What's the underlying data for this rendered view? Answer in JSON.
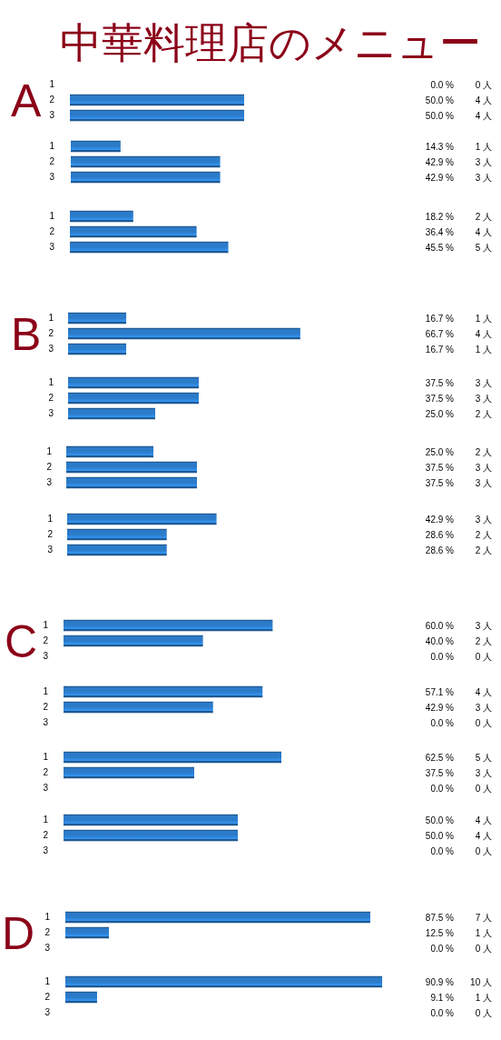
{
  "chart_data": [
    {
      "type": "bar",
      "orientation": "horizontal",
      "title": "中華料理店のメニュー",
      "ylabel": "A",
      "categories": [
        "1",
        "2",
        "3"
      ],
      "values": [
        0,
        50.0,
        50.0
      ],
      "color": "#2b7bc9",
      "tick_labels": "y",
      "value_labels": [
        "0.0 %",
        "50.0 %",
        "50.0 %"
      ],
      "annotations": [
        "0 人",
        "4 人",
        "4 人"
      ]
    },
    {
      "type": "bar",
      "orientation": "horizontal",
      "categories": [
        "1",
        "2",
        "3"
      ],
      "values": [
        14.3,
        42.9,
        42.9
      ],
      "color": "#2b7bc9",
      "tick_labels": "y",
      "value_labels": [
        "14.3 %",
        "42.9 %",
        "42.9 %"
      ],
      "annotations": [
        "1 人",
        "3 人",
        "3 人"
      ]
    },
    {
      "type": "bar",
      "orientation": "horizontal",
      "categories": [
        "1",
        "2",
        "3"
      ],
      "values": [
        18.2,
        36.4,
        45.5
      ],
      "color": "#2b7bc9",
      "tick_labels": "y",
      "value_labels": [
        "18.2 %",
        "36.4 %",
        "45.5 %"
      ],
      "annotations": [
        "2 人",
        "4 人",
        "5 人"
      ]
    },
    {
      "type": "bar",
      "orientation": "horizontal",
      "ylabel": "B",
      "categories": [
        "1",
        "2",
        "3"
      ],
      "values": [
        16.7,
        66.7,
        16.7
      ],
      "color": "#2b7bc9",
      "tick_labels": "y",
      "value_labels": [
        "16.7 %",
        "66.7 %",
        "16.7 %"
      ],
      "annotations": [
        "1 人",
        "4 人",
        "1 人"
      ]
    },
    {
      "type": "bar",
      "orientation": "horizontal",
      "categories": [
        "1",
        "2",
        "3"
      ],
      "values": [
        37.5,
        37.5,
        25.0
      ],
      "color": "#2b7bc9",
      "tick_labels": "y",
      "value_labels": [
        "37.5 %",
        "37.5 %",
        "25.0 %"
      ],
      "annotations": [
        "3 人",
        "3 人",
        "2 人"
      ]
    },
    {
      "type": "bar",
      "orientation": "horizontal",
      "categories": [
        "1",
        "2",
        "3"
      ],
      "values": [
        25.0,
        37.5,
        37.5
      ],
      "color": "#2b7bc9",
      "tick_labels": "y",
      "value_labels": [
        "25.0 %",
        "37.5 %",
        "37.5 %"
      ],
      "annotations": [
        "2 人",
        "3 人",
        "3 人"
      ]
    },
    {
      "type": "bar",
      "orientation": "horizontal",
      "categories": [
        "1",
        "2",
        "3"
      ],
      "values": [
        42.9,
        28.6,
        28.6
      ],
      "color": "#2b7bc9",
      "tick_labels": "y",
      "value_labels": [
        "42.9 %",
        "28.6 %",
        "28.6 %"
      ],
      "annotations": [
        "3 人",
        "2 人",
        "2 人"
      ]
    },
    {
      "type": "bar",
      "orientation": "horizontal",
      "ylabel": "C",
      "categories": [
        "1",
        "2",
        "3"
      ],
      "values": [
        60.0,
        40.0,
        0
      ],
      "color": "#2b7bc9",
      "tick_labels": "y",
      "value_labels": [
        "60.0 %",
        "40.0 %",
        "0.0 %"
      ],
      "annotations": [
        "3 人",
        "2 人",
        "0 人"
      ]
    },
    {
      "type": "bar",
      "orientation": "horizontal",
      "categories": [
        "1",
        "2",
        "3"
      ],
      "values": [
        57.1,
        42.9,
        0
      ],
      "color": "#2b7bc9",
      "tick_labels": "y",
      "value_labels": [
        "57.1 %",
        "42.9 %",
        "0.0 %"
      ],
      "annotations": [
        "4 人",
        "3 人",
        "0 人"
      ]
    },
    {
      "type": "bar",
      "orientation": "horizontal",
      "categories": [
        "1",
        "2",
        "3"
      ],
      "values": [
        62.5,
        37.5,
        0
      ],
      "color": "#2b7bc9",
      "tick_labels": "y",
      "value_labels": [
        "62.5 %",
        "37.5 %",
        "0.0 %"
      ],
      "annotations": [
        "5 人",
        "3 人",
        "0 人"
      ]
    },
    {
      "type": "bar",
      "orientation": "horizontal",
      "categories": [
        "1",
        "2",
        "3"
      ],
      "values": [
        50.0,
        50.0,
        0
      ],
      "color": "#2b7bc9",
      "tick_labels": "y",
      "value_labels": [
        "50.0 %",
        "50.0 %",
        "0.0 %"
      ],
      "annotations": [
        "4 人",
        "4 人",
        "0 人"
      ]
    },
    {
      "type": "bar",
      "orientation": "horizontal",
      "ylabel": "D",
      "categories": [
        "1",
        "2",
        "3"
      ],
      "values": [
        87.5,
        12.5,
        0
      ],
      "color": "#2b7bc9",
      "tick_labels": "y",
      "value_labels": [
        "87.5 %",
        "12.5 %",
        "0.0 %"
      ],
      "annotations": [
        "7 人",
        "1 人",
        "0 人"
      ]
    },
    {
      "type": "bar",
      "orientation": "horizontal",
      "categories": [
        "1",
        "2",
        "3"
      ],
      "values": [
        90.9,
        9.1,
        0
      ],
      "color": "#2b7bc9",
      "tick_labels": "y",
      "value_labels": [
        "90.9 %",
        "9.1 %",
        "0.0 %"
      ],
      "annotations": [
        "10 人",
        "1 人",
        "0 人"
      ]
    }
  ]
}
